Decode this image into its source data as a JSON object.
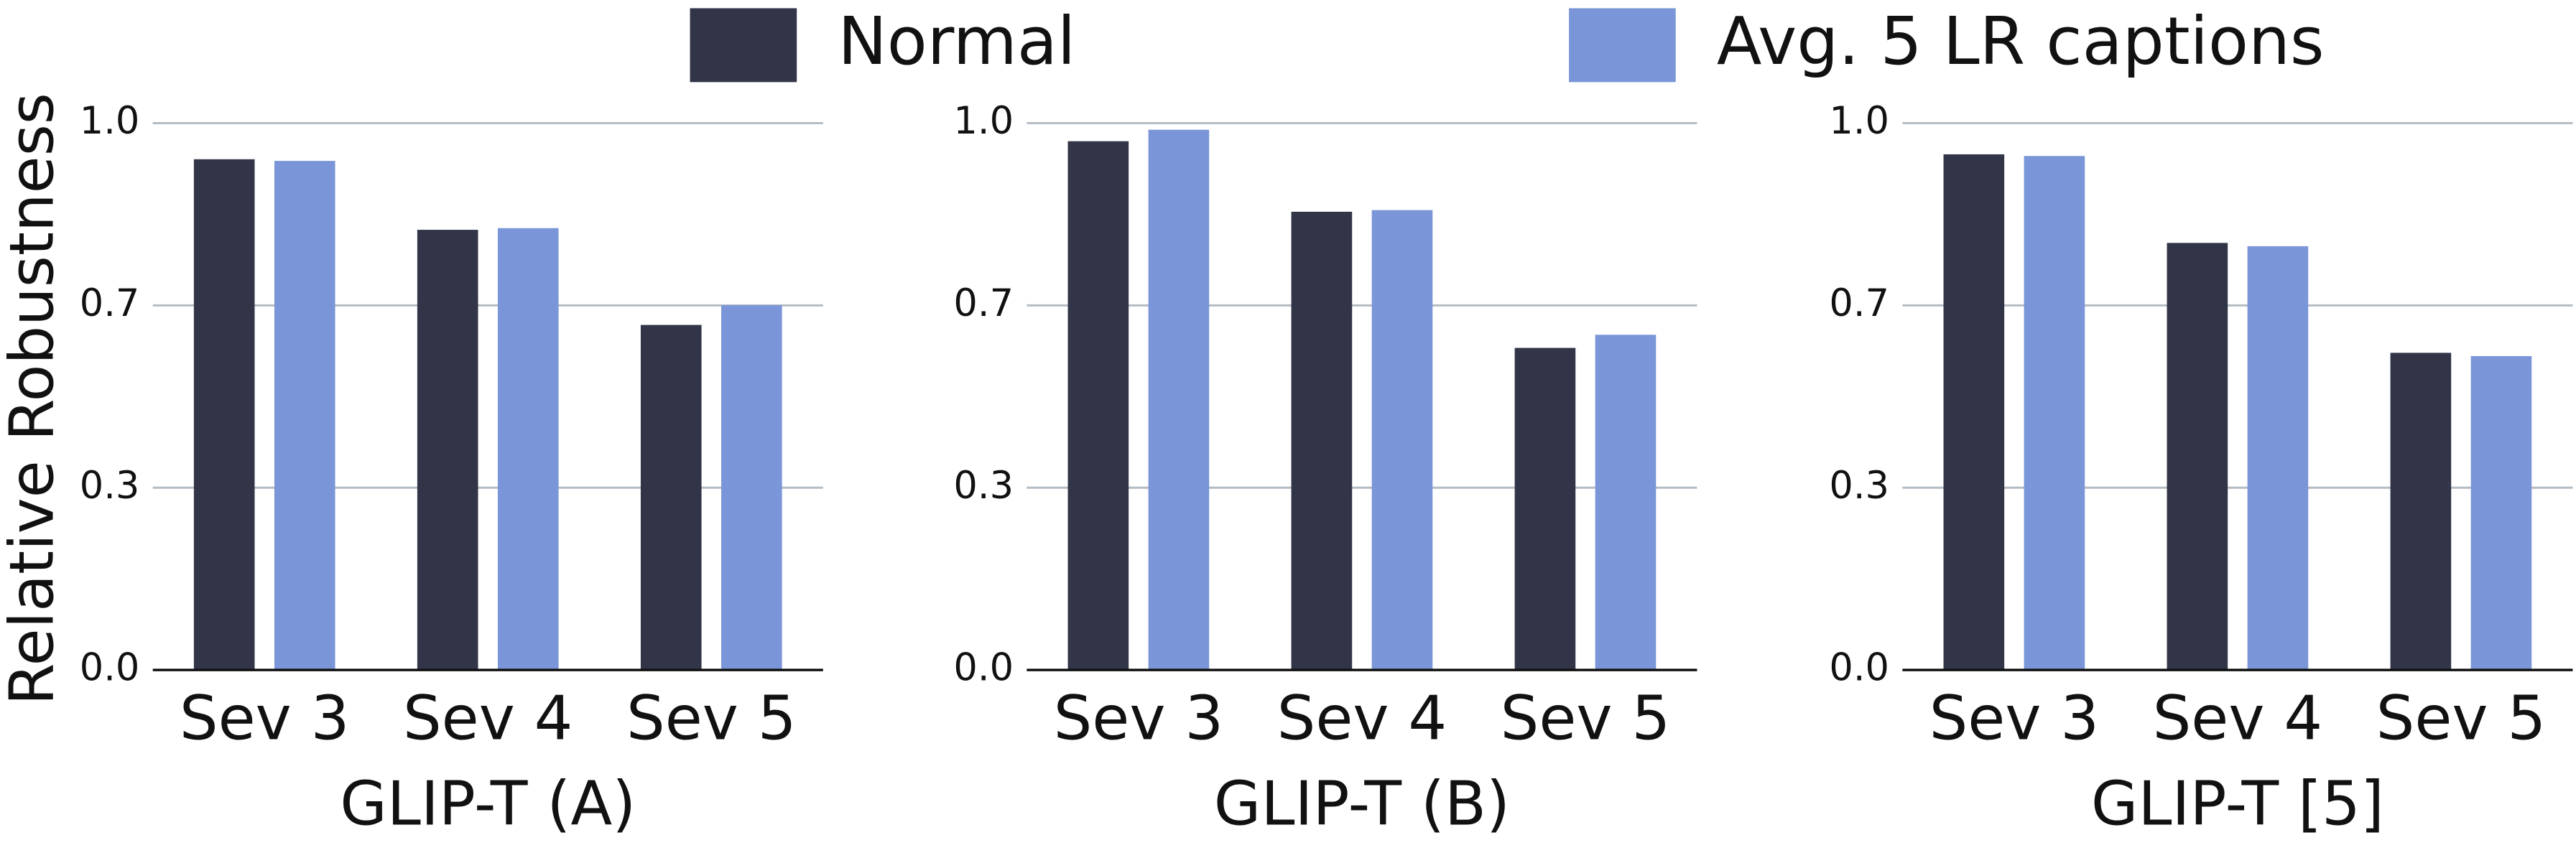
{
  "chart_data": [
    {
      "type": "bar",
      "x_label": "GLIP-T (A)",
      "y_label": "Relative Robustness",
      "categories": [
        "Sev 3",
        "Sev 4",
        "Sev 5"
      ],
      "series": [
        {
          "name": "Normal",
          "color": "#323548",
          "values": [
            0.934,
            0.805,
            0.631
          ]
        },
        {
          "name": "Avg. 5 LR captions",
          "color": "#7a96d8",
          "values": [
            0.931,
            0.808,
            0.667
          ]
        }
      ],
      "ylim": [
        0,
        1
      ],
      "yticks": [
        {
          "value": 0,
          "label": "0.0"
        },
        {
          "value": 0.3333,
          "label": "0.3"
        },
        {
          "value": 0.6667,
          "label": "0.7"
        },
        {
          "value": 1,
          "label": "1.0"
        }
      ],
      "grid": true
    },
    {
      "type": "bar",
      "x_label": "GLIP-T (B)",
      "categories": [
        "Sev 3",
        "Sev 4",
        "Sev 5"
      ],
      "series": [
        {
          "color": "#323548",
          "values": [
            0.967,
            0.838,
            0.589
          ]
        },
        {
          "color": "#7a96d8",
          "values": [
            0.988,
            0.841,
            0.613
          ]
        }
      ],
      "ylim": [
        0,
        1
      ],
      "yticks": [
        {
          "value": 0,
          "label": "0.0"
        },
        {
          "value": 0.3333,
          "label": "0.3"
        },
        {
          "value": 0.6667,
          "label": "0.7"
        },
        {
          "value": 1,
          "label": "1.0"
        }
      ],
      "grid": true
    },
    {
      "type": "bar",
      "x_label": "GLIP-T [5]",
      "categories": [
        "Sev 3",
        "Sev 4",
        "Sev 5"
      ],
      "series": [
        {
          "color": "#323548",
          "values": [
            0.943,
            0.781,
            0.58
          ]
        },
        {
          "color": "#7a96d8",
          "values": [
            0.94,
            0.775,
            0.574
          ]
        }
      ],
      "ylim": [
        0,
        1
      ],
      "yticks": [
        {
          "value": 0,
          "label": "0.0"
        },
        {
          "value": 0.3333,
          "label": "0.3"
        },
        {
          "value": 0.6667,
          "label": "0.7"
        },
        {
          "value": 1,
          "label": "1.0"
        }
      ],
      "grid": true
    }
  ]
}
